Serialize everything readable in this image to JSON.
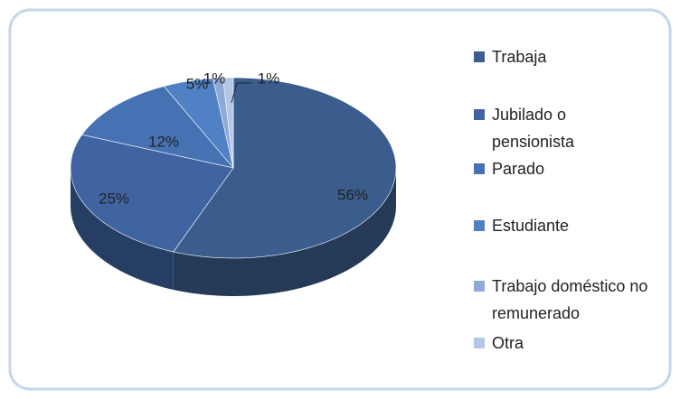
{
  "chart_data": {
    "type": "pie",
    "categories": [
      "Trabaja",
      "Jubilado o pensionista",
      "Parado",
      "Estudiante",
      "Trabajo doméstico no remunerado",
      "Otra"
    ],
    "values": [
      56,
      25,
      12,
      5,
      1,
      1
    ],
    "value_labels": [
      "56%",
      "25%",
      "12%",
      "5%",
      "1%",
      "1%"
    ],
    "colors": [
      "#3b5d8d",
      "#3f64a1",
      "#4672b4",
      "#4f81c4",
      "#8ea9d8",
      "#b4c6e6"
    ],
    "legend": "right"
  }
}
